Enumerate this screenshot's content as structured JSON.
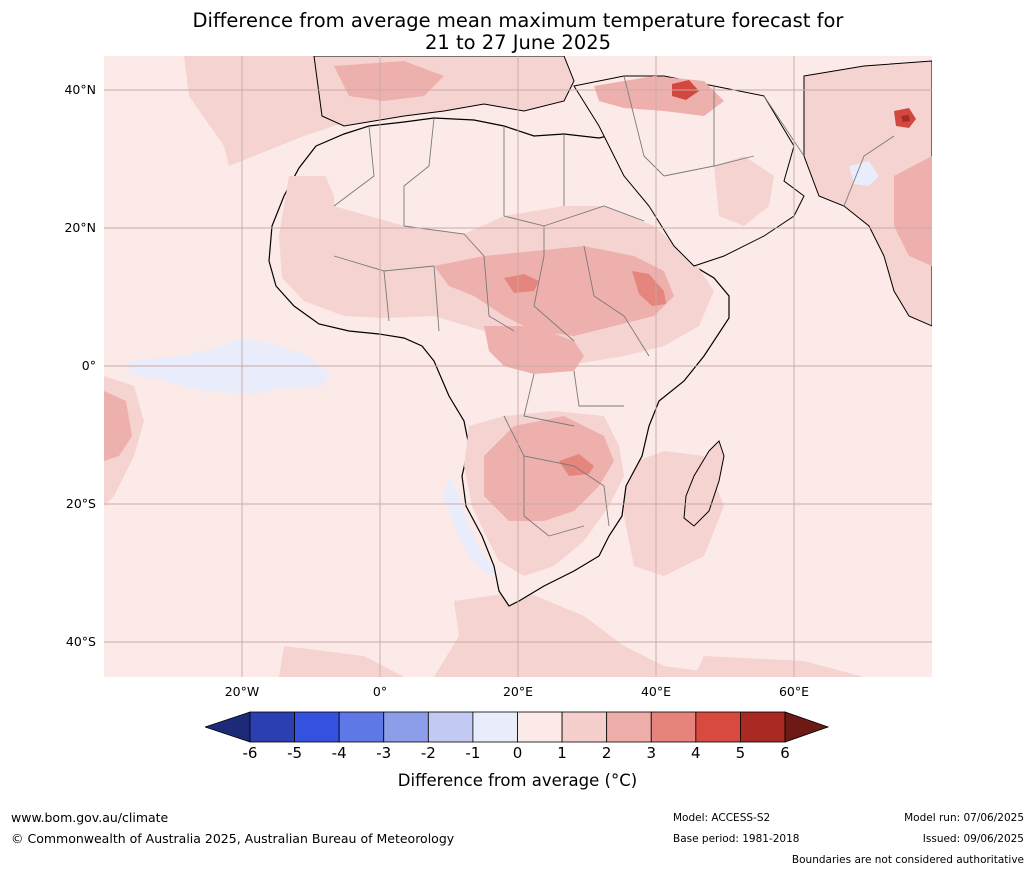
{
  "title": {
    "line1": "Difference from average mean maximum temperature forecast for",
    "line2": "21 to 27 June 2025"
  },
  "lat_labels": [
    "40°N",
    "20°N",
    "0°",
    "20°S",
    "40°S"
  ],
  "lon_labels": [
    "20°W",
    "0°",
    "20°E",
    "40°E",
    "60°E"
  ],
  "colorbar": {
    "ticks": [
      "-6",
      "-5",
      "-4",
      "-3",
      "-2",
      "-1",
      "0",
      "1",
      "2",
      "3",
      "4",
      "5",
      "6"
    ],
    "colors": [
      "#1c2a78",
      "#2b3fb0",
      "#3451e0",
      "#5e78e6",
      "#8c9dea",
      "#c2c9f2",
      "#e9ecfb",
      "#fbeae8",
      "#f5cfcc",
      "#edaeaa",
      "#e5837c",
      "#d84a40",
      "#a82a22",
      "#6e1a14"
    ],
    "label": "Difference from average (°C)"
  },
  "legend_colors": {
    "ocean_base": "#fbeae8",
    "warm_1_2": "#f5d3d0",
    "warm_2_3": "#eeb0ac",
    "warm_3_4": "#e4857e",
    "warm_4_5": "#d2473f",
    "cool_0_1": "#e9ecfb",
    "coastline": "#000000",
    "border": "#7a7a7a",
    "gridline": "#c9a9a7"
  },
  "footer": {
    "website": "www.bom.gov.au/climate",
    "copyright": "© Commonwealth of Australia 2025, Australian Bureau of Meteorology",
    "model": "Model: ACCESS-S2",
    "base_period": "Base period: 1981-2018",
    "model_run": "Model run: 07/06/2025",
    "issued": "Issued: 09/06/2025",
    "disclaimer": "Boundaries are not considered authoritative"
  }
}
